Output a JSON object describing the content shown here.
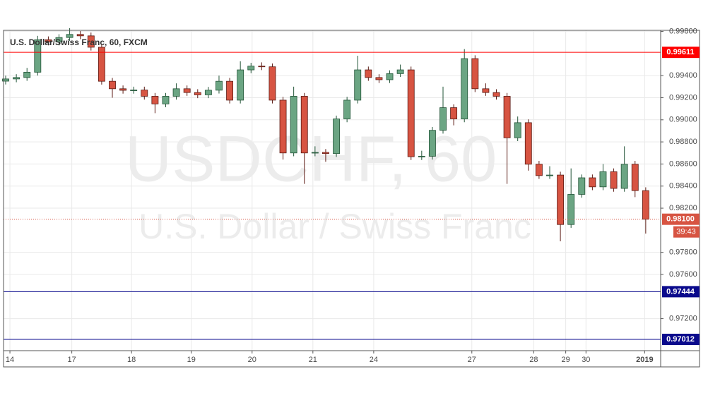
{
  "chart_data": {
    "type": "candlestick",
    "title": "U.S. Dollar/Swiss Franc, 60, FXCM",
    "watermark": [
      "USDCHF, 60",
      "U.S. Dollar / Swiss Franc"
    ],
    "up_color": "#6ba583",
    "down_color": "#d75442",
    "xlim": [
      -0.2,
      61.4
    ],
    "xticks": [
      {
        "value": 0.4,
        "label": "14"
      },
      {
        "value": 6.2,
        "label": "17"
      },
      {
        "value": 11.8,
        "label": "18"
      },
      {
        "value": 17.4,
        "label": "19"
      },
      {
        "value": 23.1,
        "label": "20"
      },
      {
        "value": 28.8,
        "label": "21"
      },
      {
        "value": 34.5,
        "label": "24"
      },
      {
        "value": 43.7,
        "label": "27"
      },
      {
        "value": 49.5,
        "label": "28"
      },
      {
        "value": 52.5,
        "label": "29"
      },
      {
        "value": 54.4,
        "label": "30"
      },
      {
        "value": 59.9,
        "label": "2019"
      }
    ],
    "ylim": [
      0.9691,
      0.9981
    ],
    "yticks": [
      {
        "value": 0.998,
        "label": "0.99800"
      },
      {
        "value": 0.994,
        "label": "0.99400"
      },
      {
        "value": 0.992,
        "label": "0.99200"
      },
      {
        "value": 0.99,
        "label": "0.99000"
      },
      {
        "value": 0.988,
        "label": "0.98800"
      },
      {
        "value": 0.986,
        "label": "0.98600"
      },
      {
        "value": 0.984,
        "label": "0.98400"
      },
      {
        "value": 0.982,
        "label": "0.98200"
      },
      {
        "value": 0.978,
        "label": "0.97800"
      },
      {
        "value": 0.976,
        "label": "0.97600"
      },
      {
        "value": 0.972,
        "label": "0.97200"
      }
    ],
    "grid": true,
    "open": [
      0.9935,
      0.9937,
      0.99383,
      0.99431,
      0.99725,
      0.99704,
      0.99745,
      0.99773,
      0.9976,
      0.99657,
      0.99349,
      0.99281,
      0.99267,
      0.9927,
      0.99213,
      0.99144,
      0.99213,
      0.99281,
      0.99247,
      0.99226,
      0.99268,
      0.99349,
      0.99178,
      0.99452,
      0.99486,
      0.9948,
      0.99178,
      0.987,
      0.99213,
      0.987,
      0.98705,
      0.98694,
      0.99008,
      0.99178,
      0.99452,
      0.99383,
      0.99363,
      0.99418,
      0.99452,
      0.98666,
      0.9867,
      0.98905,
      0.9911,
      0.99008,
      0.99554,
      0.99281,
      0.99247,
      0.99213,
      0.98837,
      0.98974,
      0.98598,
      0.98495,
      0.985,
      0.98052,
      0.98325,
      0.98475,
      0.98393,
      0.9853,
      0.98379,
      0.98598,
      0.98359
    ],
    "high": [
      0.994,
      0.99413,
      0.9947,
      0.9976,
      0.99755,
      0.99775,
      0.9983,
      0.99803,
      0.9979,
      0.99687,
      0.99379,
      0.99311,
      0.993,
      0.993,
      0.99243,
      0.99243,
      0.9933,
      0.99311,
      0.99277,
      0.99298,
      0.994,
      0.99379,
      0.9953,
      0.99516,
      0.9952,
      0.9951,
      0.99208,
      0.993,
      0.99243,
      0.9876,
      0.98735,
      0.99038,
      0.99208,
      0.9958,
      0.99482,
      0.99413,
      0.99448,
      0.995,
      0.99482,
      0.9872,
      0.98935,
      0.993,
      0.9914,
      0.9964,
      0.99584,
      0.9933,
      0.99277,
      0.99243,
      0.9903,
      0.99004,
      0.98628,
      0.9858,
      0.9853,
      0.9856,
      0.98505,
      0.98505,
      0.986,
      0.9856,
      0.9876,
      0.98628,
      0.98389
    ],
    "low": [
      0.9932,
      0.9934,
      0.99353,
      0.99401,
      0.99674,
      0.99674,
      0.99715,
      0.9973,
      0.99627,
      0.99319,
      0.992,
      0.99237,
      0.99237,
      0.99183,
      0.9906,
      0.99114,
      0.99183,
      0.99217,
      0.99196,
      0.99196,
      0.99238,
      0.99148,
      0.99148,
      0.99422,
      0.9945,
      0.99148,
      0.9864,
      0.9867,
      0.9842,
      0.9867,
      0.9862,
      0.98664,
      0.98978,
      0.99148,
      0.99353,
      0.99333,
      0.99333,
      0.99388,
      0.98636,
      0.98636,
      0.9864,
      0.98875,
      0.9895,
      0.98978,
      0.99251,
      0.99217,
      0.99183,
      0.9842,
      0.98807,
      0.9854,
      0.98465,
      0.98465,
      0.979,
      0.98022,
      0.98295,
      0.98363,
      0.98363,
      0.98349,
      0.98349,
      0.983,
      0.9797
    ],
    "close": [
      0.9937,
      0.99383,
      0.99431,
      0.99725,
      0.99704,
      0.99745,
      0.99773,
      0.9976,
      0.99657,
      0.99349,
      0.99281,
      0.99267,
      0.9927,
      0.99213,
      0.99144,
      0.99213,
      0.99281,
      0.99247,
      0.99226,
      0.99268,
      0.99349,
      0.99178,
      0.99452,
      0.99486,
      0.9948,
      0.99178,
      0.987,
      0.99213,
      0.987,
      0.98705,
      0.98694,
      0.99008,
      0.99178,
      0.99452,
      0.99383,
      0.99363,
      0.99418,
      0.99452,
      0.98666,
      0.9867,
      0.98905,
      0.9911,
      0.99008,
      0.99554,
      0.99281,
      0.99247,
      0.99213,
      0.98837,
      0.98974,
      0.98598,
      0.98495,
      0.985,
      0.98052,
      0.98325,
      0.98475,
      0.98393,
      0.9853,
      0.98379,
      0.98598,
      0.98359,
      0.981
    ],
    "levels": [
      {
        "value": 0.99611,
        "color": "#ff0000"
      },
      {
        "value": 0.97444,
        "color": "#0a0a8c"
      },
      {
        "value": 0.97012,
        "color": "#0a0a8c"
      }
    ],
    "current": {
      "value": 0.981,
      "label": "0.98100",
      "countdown": "39:43",
      "color": "#d75442"
    }
  }
}
